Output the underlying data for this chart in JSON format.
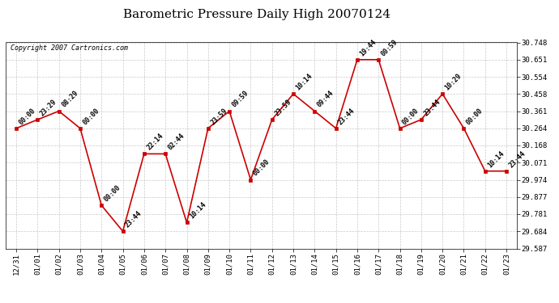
{
  "title": "Barometric Pressure Daily High 20070124",
  "copyright": "Copyright 2007 Cartronics.com",
  "x_labels": [
    "12/31",
    "01/01",
    "01/02",
    "01/03",
    "01/04",
    "01/05",
    "01/06",
    "01/07",
    "01/08",
    "01/09",
    "01/10",
    "01/11",
    "01/12",
    "01/13",
    "01/14",
    "01/15",
    "01/16",
    "01/17",
    "01/18",
    "01/19",
    "01/20",
    "01/21",
    "01/22",
    "01/23"
  ],
  "y_values": [
    30.264,
    30.313,
    30.361,
    30.264,
    29.83,
    29.684,
    30.12,
    30.12,
    29.733,
    30.264,
    30.361,
    29.974,
    30.313,
    30.458,
    30.361,
    30.264,
    30.651,
    30.651,
    30.264,
    30.313,
    30.458,
    30.264,
    30.023,
    30.023
  ],
  "point_labels": [
    "00:00",
    "23:29",
    "08:29",
    "00:00",
    "00:00",
    "23:44",
    "22:14",
    "02:44",
    "10:14",
    "23:59",
    "09:59",
    "00:00",
    "23:59",
    "10:14",
    "09:44",
    "23:44",
    "19:44",
    "00:59",
    "00:00",
    "23:44",
    "10:29",
    "00:00",
    "10:14",
    "23:44"
  ],
  "y_ticks": [
    29.587,
    29.684,
    29.781,
    29.877,
    29.974,
    30.071,
    30.168,
    30.264,
    30.361,
    30.458,
    30.554,
    30.651,
    30.748
  ],
  "y_min": 29.587,
  "y_max": 30.748,
  "line_color": "#cc0000",
  "marker_color": "#cc0000",
  "marker_size": 3,
  "bg_color": "#ffffff",
  "plot_bg_color": "#ffffff",
  "grid_color": "#bbbbbb",
  "title_fontsize": 11,
  "label_fontsize": 6,
  "tick_fontsize": 6.5,
  "copyright_fontsize": 6
}
